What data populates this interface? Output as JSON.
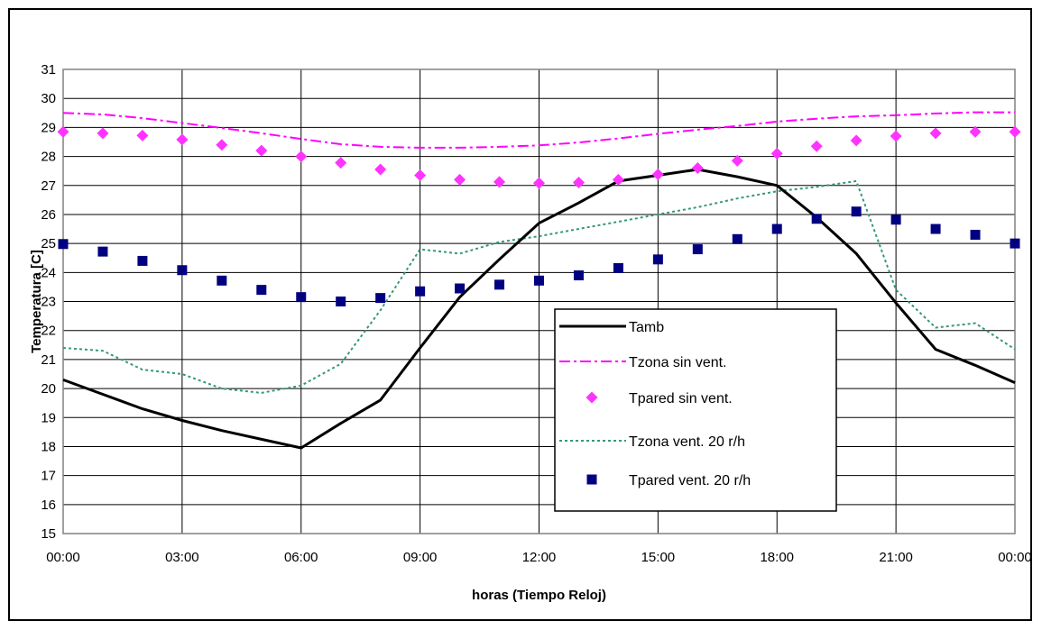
{
  "chart_data": {
    "type": "line",
    "xlabel": "horas (Tiempo Reloj)",
    "ylabel": "Temperatura [C]",
    "ylim": [
      15,
      31
    ],
    "xlim": [
      0,
      24
    ],
    "grid": true,
    "legend_position": "center-right",
    "x_tick_labels": [
      "00:00",
      "03:00",
      "06:00",
      "09:00",
      "12:00",
      "15:00",
      "18:00",
      "21:00",
      "00:00"
    ],
    "y_ticks": [
      15,
      16,
      17,
      18,
      19,
      20,
      21,
      22,
      23,
      24,
      25,
      26,
      27,
      28,
      29,
      30,
      31
    ],
    "x": [
      0,
      1,
      2,
      3,
      4,
      5,
      6,
      7,
      8,
      9,
      10,
      11,
      12,
      13,
      14,
      15,
      16,
      17,
      18,
      19,
      20,
      21,
      22,
      23,
      24
    ],
    "series": [
      {
        "name": "Tamb",
        "style": "solid",
        "color": "#000000",
        "values": [
          20.3,
          19.8,
          19.3,
          18.9,
          18.55,
          18.25,
          17.95,
          18.8,
          19.6,
          21.4,
          23.15,
          24.45,
          25.7,
          26.4,
          27.15,
          27.35,
          27.55,
          27.3,
          27.0,
          25.9,
          24.65,
          22.95,
          21.35,
          20.8,
          20.2
        ]
      },
      {
        "name": "Tzona sin vent.",
        "style": "dashdot",
        "color": "#ff00ff",
        "values": [
          29.5,
          29.45,
          29.32,
          29.15,
          28.98,
          28.8,
          28.6,
          28.42,
          28.33,
          28.3,
          28.3,
          28.33,
          28.38,
          28.48,
          28.62,
          28.78,
          28.92,
          29.05,
          29.2,
          29.3,
          29.38,
          29.42,
          29.48,
          29.52,
          29.52
        ]
      },
      {
        "name": "Tpared sin vent.",
        "style": "diamond",
        "color": "#ff33ff",
        "values": [
          28.85,
          28.8,
          28.72,
          28.58,
          28.4,
          28.2,
          28.0,
          27.78,
          27.55,
          27.35,
          27.2,
          27.12,
          27.08,
          27.1,
          27.2,
          27.38,
          27.6,
          27.85,
          28.1,
          28.35,
          28.55,
          28.7,
          28.8,
          28.85,
          28.85
        ]
      },
      {
        "name": "Tzona vent. 20 r/h",
        "style": "dotted",
        "color": "#339977",
        "values": [
          21.4,
          21.3,
          20.65,
          20.5,
          20.0,
          19.85,
          20.1,
          20.85,
          22.7,
          24.8,
          24.65,
          25.05,
          25.25,
          25.5,
          25.75,
          26.0,
          26.25,
          26.55,
          26.8,
          26.95,
          27.15,
          23.4,
          22.1,
          22.25,
          21.35
        ]
      },
      {
        "name": "Tpared vent. 20 r/h",
        "style": "square",
        "color": "#000080",
        "values": [
          24.98,
          24.72,
          24.4,
          24.08,
          23.72,
          23.4,
          23.15,
          23.0,
          23.12,
          23.35,
          23.45,
          23.58,
          23.72,
          23.9,
          24.15,
          24.45,
          24.8,
          25.15,
          25.5,
          25.85,
          26.1,
          25.82,
          25.5,
          25.3,
          25.0
        ]
      }
    ]
  }
}
